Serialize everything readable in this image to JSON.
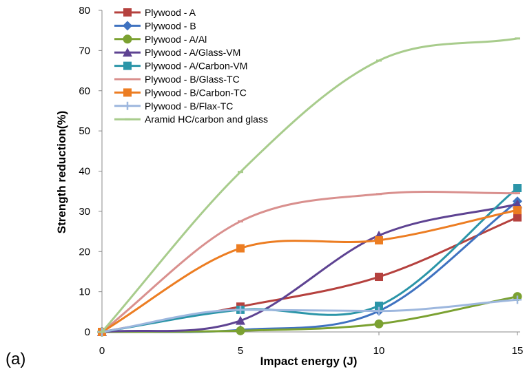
{
  "panel_label": "(a)",
  "chart_data": {
    "type": "line",
    "xlabel": "Impact energy (J)",
    "ylabel": "Strength reduction(%)",
    "xlim": [
      0,
      15
    ],
    "ylim": [
      0,
      80
    ],
    "xticks": [
      0,
      5,
      10,
      15
    ],
    "yticks": [
      0,
      10,
      20,
      30,
      40,
      50,
      60,
      70,
      80
    ],
    "grid": false,
    "legend_position": "top-left",
    "x": [
      0,
      5,
      10,
      15
    ],
    "series": [
      {
        "name": "Plywood - A",
        "color": "#b5413e",
        "marker": "square",
        "values": [
          0,
          6.3,
          13.7,
          28.5
        ]
      },
      {
        "name": "Plywood - B",
        "color": "#3f72c0",
        "marker": "diamond",
        "values": [
          0,
          0.5,
          5.2,
          32.5
        ]
      },
      {
        "name": "Plywood - A/Al",
        "color": "#7ba131",
        "marker": "circle",
        "values": [
          0,
          0.3,
          2.0,
          8.8
        ]
      },
      {
        "name": "Plywood - A/Glass-VM",
        "color": "#5e4392",
        "marker": "triangle",
        "values": [
          0,
          2.8,
          24.0,
          31.8
        ]
      },
      {
        "name": "Plywood - A/Carbon-VM",
        "color": "#2b95a8",
        "marker": "square",
        "values": [
          0,
          5.5,
          6.5,
          35.8
        ]
      },
      {
        "name": "Plywood - B/Glass-TC",
        "color": "#d9908e",
        "marker": "dash",
        "values": [
          0,
          27.5,
          34.3,
          34.5
        ]
      },
      {
        "name": "Plywood - B/Carbon-TC",
        "color": "#ec7d22",
        "marker": "square",
        "values": [
          0,
          20.8,
          22.8,
          30.3
        ]
      },
      {
        "name": "Plywood - B/Flax-TC",
        "color": "#9db7de",
        "marker": "plus",
        "values": [
          0,
          5.5,
          5.2,
          8.0
        ]
      },
      {
        "name": "Aramid HC/carbon and glass",
        "color": "#a8cc8c",
        "marker": "dash",
        "values": [
          0,
          39.8,
          67.5,
          73.0
        ]
      }
    ]
  }
}
